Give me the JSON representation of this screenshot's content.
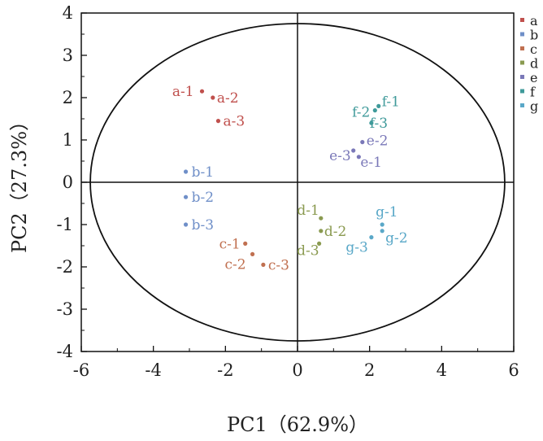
{
  "chart_data": {
    "type": "scatter",
    "title": "",
    "xlabel": "PC1（62.9%）",
    "ylabel": "PC2（27.3%）",
    "xlim": [
      -6,
      6
    ],
    "ylim": [
      -4,
      4
    ],
    "xticks": [
      "-6",
      "-4",
      "-2",
      "0",
      "2",
      "4",
      "6"
    ],
    "yticks": [
      "4",
      "3",
      "2",
      "1",
      "0",
      "-1",
      "-2",
      "-3",
      "-4"
    ],
    "grid": false,
    "legend_position": "top-right",
    "confidence_ellipse": {
      "center": [
        0,
        0
      ],
      "rx": 5.75,
      "ry": 3.75
    },
    "series": [
      {
        "name": "a",
        "color": "#c0504d",
        "points": [
          {
            "label": "a-1",
            "x": -2.65,
            "y": 2.15
          },
          {
            "label": "a-2",
            "x": -2.35,
            "y": 2.0
          },
          {
            "label": "a-3",
            "x": -2.2,
            "y": 1.45
          }
        ]
      },
      {
        "name": "b",
        "color": "#6f8fc8",
        "points": [
          {
            "label": "b-1",
            "x": -3.1,
            "y": 0.25
          },
          {
            "label": "b-2",
            "x": -3.1,
            "y": -0.35
          },
          {
            "label": "b-3",
            "x": -3.1,
            "y": -1.0
          }
        ]
      },
      {
        "name": "c",
        "color": "#c07050",
        "points": [
          {
            "label": "c-1",
            "x": -1.45,
            "y": -1.45
          },
          {
            "label": "c-2",
            "x": -1.25,
            "y": -1.7
          },
          {
            "label": "c-3",
            "x": -0.95,
            "y": -1.95
          }
        ]
      },
      {
        "name": "d",
        "color": "#8a9a50",
        "points": [
          {
            "label": "d-1",
            "x": 0.65,
            "y": -0.85
          },
          {
            "label": "d-2",
            "x": 0.65,
            "y": -1.15
          },
          {
            "label": "d-3",
            "x": 0.6,
            "y": -1.45
          }
        ]
      },
      {
        "name": "e",
        "color": "#7a78b8",
        "points": [
          {
            "label": "e-1",
            "x": 1.7,
            "y": 0.6
          },
          {
            "label": "e-2",
            "x": 1.8,
            "y": 0.95
          },
          {
            "label": "e-3",
            "x": 1.55,
            "y": 0.75
          }
        ]
      },
      {
        "name": "f",
        "color": "#3f9a9a",
        "points": [
          {
            "label": "f-1",
            "x": 2.25,
            "y": 1.8
          },
          {
            "label": "f-2",
            "x": 2.15,
            "y": 1.7
          },
          {
            "label": "f-3",
            "x": 2.05,
            "y": 1.4
          }
        ]
      },
      {
        "name": "g",
        "color": "#5aa8c8",
        "points": [
          {
            "label": "g-1",
            "x": 2.35,
            "y": -1.0
          },
          {
            "label": "g-2",
            "x": 2.35,
            "y": -1.15
          },
          {
            "label": "g-3",
            "x": 2.05,
            "y": -1.3
          }
        ]
      }
    ]
  }
}
